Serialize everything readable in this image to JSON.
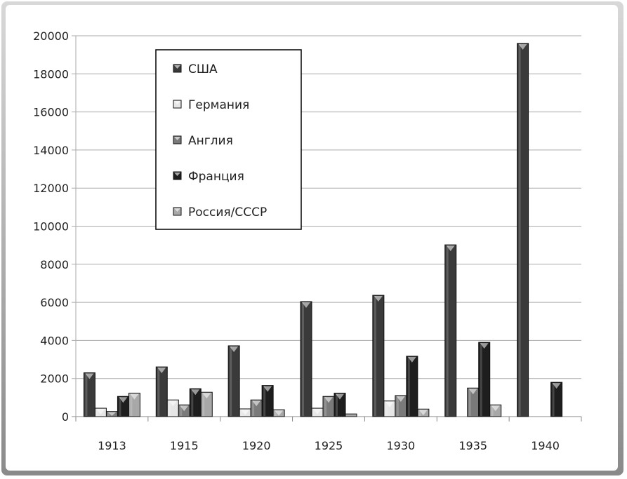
{
  "chart_data": {
    "type": "bar",
    "title": "",
    "xlabel": "",
    "ylabel": "",
    "categories": [
      "1913",
      "1915",
      "1920",
      "1925",
      "1930",
      "1935",
      "1940"
    ],
    "ylim": [
      0,
      20000
    ],
    "yticks": [
      "0",
      "2000",
      "4000",
      "6000",
      "8000",
      "10000",
      "12000",
      "14000",
      "16000",
      "18000",
      "20000"
    ],
    "grid": true,
    "legend_position": "top-left",
    "series": [
      {
        "name": "США",
        "color": "#3a3a3a",
        "values": [
          2300,
          2610,
          3720,
          6040,
          6370,
          9020,
          19600
        ]
      },
      {
        "name": "Германия",
        "color": "#e6e6e6",
        "values": [
          440,
          875,
          405,
          440,
          820,
          0,
          0
        ]
      },
      {
        "name": "Англия",
        "color": "#7a7a7a",
        "values": [
          270,
          615,
          875,
          1060,
          1105,
          1500,
          0
        ]
      },
      {
        "name": "Франция",
        "color": "#1e1e1e",
        "values": [
          1060,
          1465,
          1635,
          1230,
          3170,
          3900,
          1800
        ]
      },
      {
        "name": "Россия/СССР",
        "color": "#a8a8a8",
        "values": [
          1230,
          1280,
          360,
          140,
          395,
          615,
          0
        ]
      }
    ]
  }
}
